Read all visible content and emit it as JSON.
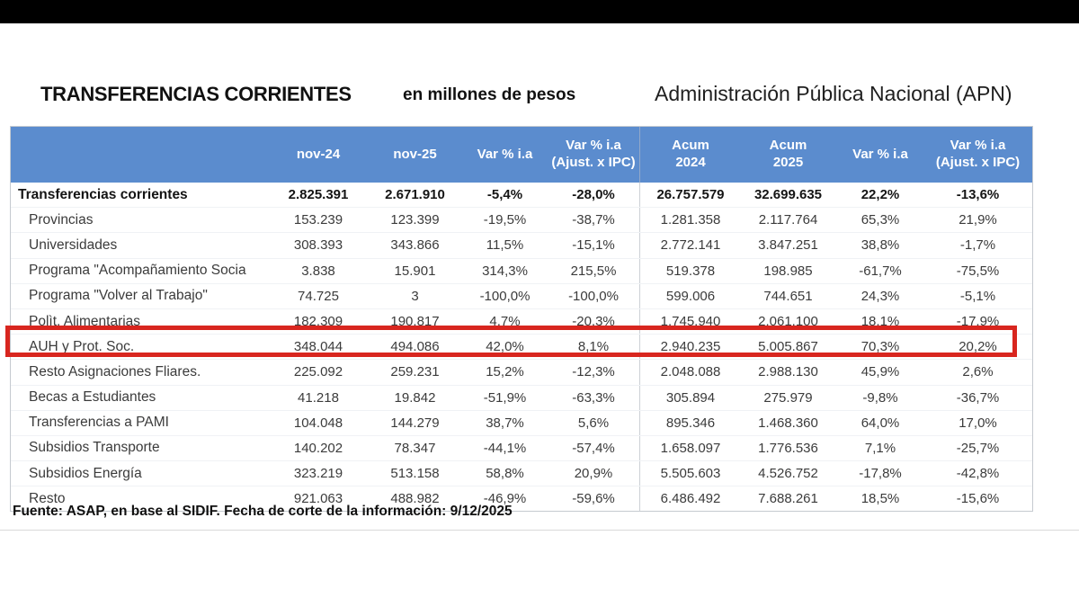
{
  "header": {
    "title": "TRANSFERENCIAS CORRIENTES",
    "unit_label": "en millones de pesos",
    "scope_label": "Administración Pública Nacional  (APN)"
  },
  "footer": {
    "source_note": "Fuente: ASAP, en base al SIDIF. Fecha de corte de la información: 9/12/2025"
  },
  "colors": {
    "header_blue": "#5B8CCE",
    "highlight_red": "#D8261F"
  },
  "chart_data": {
    "type": "table",
    "title": "TRANSFERENCIAS CORRIENTES",
    "unit": "en millones de pesos",
    "scope": "Administración Pública Nacional (APN)",
    "columns": [
      {
        "lines": [
          ""
        ]
      },
      {
        "lines": [
          "nov-24"
        ]
      },
      {
        "lines": [
          "nov-25"
        ]
      },
      {
        "lines": [
          "Var % i.a"
        ]
      },
      {
        "lines": [
          "Var % i.a",
          "(Ajust. x IPC)"
        ]
      },
      {
        "lines": [
          "Acum",
          "2024"
        ]
      },
      {
        "lines": [
          "Acum",
          "2025"
        ]
      },
      {
        "lines": [
          "Var % i.a"
        ]
      },
      {
        "lines": [
          "Var % i.a",
          "(Ajust. x IPC)"
        ]
      }
    ],
    "rows": [
      {
        "label": "Transferencias corrientes",
        "bold": true,
        "highlighted": false,
        "values": [
          "2.825.391",
          "2.671.910",
          "-5,4%",
          "-28,0%",
          "26.757.579",
          "32.699.635",
          "22,2%",
          "-13,6%"
        ]
      },
      {
        "label": "Provincias",
        "bold": false,
        "highlighted": false,
        "values": [
          "153.239",
          "123.399",
          "-19,5%",
          "-38,7%",
          "1.281.358",
          "2.117.764",
          "65,3%",
          "21,9%"
        ]
      },
      {
        "label": "Universidades",
        "bold": false,
        "highlighted": false,
        "values": [
          "308.393",
          "343.866",
          "11,5%",
          "-15,1%",
          "2.772.141",
          "3.847.251",
          "38,8%",
          "-1,7%"
        ]
      },
      {
        "label": "Programa \"Acompañamiento Socia",
        "bold": false,
        "highlighted": false,
        "values": [
          "3.838",
          "15.901",
          "314,3%",
          "215,5%",
          "519.378",
          "198.985",
          "-61,7%",
          "-75,5%"
        ]
      },
      {
        "label": "Programa \"Volver al Trabajo\"",
        "bold": false,
        "highlighted": false,
        "values": [
          "74.725",
          "3",
          "-100,0%",
          "-100,0%",
          "599.006",
          "744.651",
          "24,3%",
          "-5,1%"
        ]
      },
      {
        "label": "Polìt. Alimentarias",
        "bold": false,
        "highlighted": false,
        "values": [
          "182.309",
          "190.817",
          "4,7%",
          "-20,3%",
          "1.745.940",
          "2.061.100",
          "18,1%",
          "-17,9%"
        ]
      },
      {
        "label": "AUH y Prot. Soc.",
        "bold": false,
        "highlighted": true,
        "values": [
          "348.044",
          "494.086",
          "42,0%",
          "8,1%",
          "2.940.235",
          "5.005.867",
          "70,3%",
          "20,2%"
        ]
      },
      {
        "label": "Resto Asignaciones Fliares.",
        "bold": false,
        "highlighted": false,
        "values": [
          "225.092",
          "259.231",
          "15,2%",
          "-12,3%",
          "2.048.088",
          "2.988.130",
          "45,9%",
          "2,6%"
        ]
      },
      {
        "label": "Becas a Estudiantes",
        "bold": false,
        "highlighted": false,
        "values": [
          "41.218",
          "19.842",
          "-51,9%",
          "-63,3%",
          "305.894",
          "275.979",
          "-9,8%",
          "-36,7%"
        ]
      },
      {
        "label": "Transferencias a PAMI",
        "bold": false,
        "highlighted": false,
        "values": [
          "104.048",
          "144.279",
          "38,7%",
          "5,6%",
          "895.346",
          "1.468.360",
          "64,0%",
          "17,0%"
        ]
      },
      {
        "label": "Subsidios Transporte",
        "bold": false,
        "highlighted": false,
        "values": [
          "140.202",
          "78.347",
          "-44,1%",
          "-57,4%",
          "1.658.097",
          "1.776.536",
          "7,1%",
          "-25,7%"
        ]
      },
      {
        "label": "Subsidios Energía",
        "bold": false,
        "highlighted": false,
        "values": [
          "323.219",
          "513.158",
          "58,8%",
          "20,9%",
          "5.505.603",
          "4.526.752",
          "-17,8%",
          "-42,8%"
        ]
      },
      {
        "label": "Resto",
        "bold": false,
        "highlighted": false,
        "values": [
          "921.063",
          "488.982",
          "-46,9%",
          "-59,6%",
          "6.486.492",
          "7.688.261",
          "18,5%",
          "-15,6%"
        ]
      }
    ],
    "source_note": "Fuente: ASAP, en base al SIDIF. Fecha de corte de la información: 9/12/2025",
    "layout": {
      "highlighted_row_label": "AUH y Prot. Soc.",
      "grid": "off",
      "legend": "none"
    }
  }
}
